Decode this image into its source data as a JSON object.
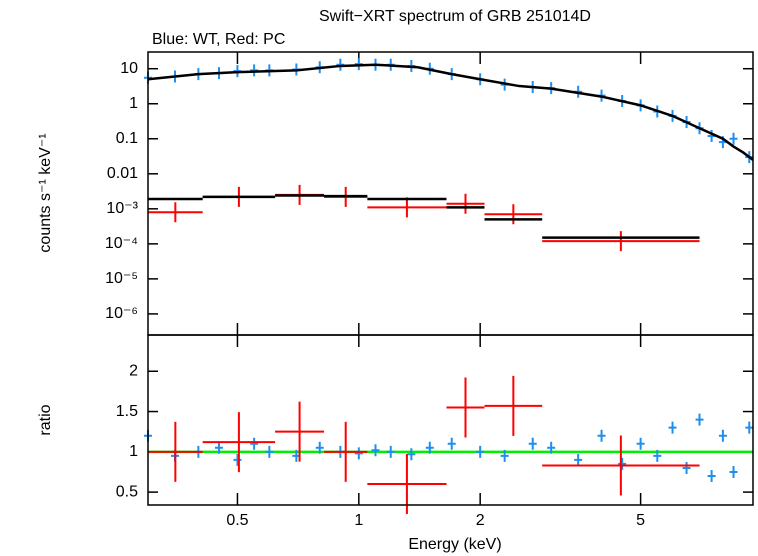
{
  "chart_data": [
    {
      "type": "spectrum",
      "title": "Swift−XRT spectrum of GRB 251014D",
      "subtitle": "Blue: WT, Red: PC",
      "ylabel": "counts s⁻¹ keV⁻¹",
      "xscale": "log",
      "yscale": "log",
      "xlim": [
        0.3,
        9.5
      ],
      "ylim": [
        2.5e-07,
        30
      ],
      "yticks": [
        10,
        1,
        0.1,
        0.01,
        {
          "value": 0.001,
          "label": "10⁻³"
        },
        {
          "value": 0.0001,
          "label": "10⁻⁴"
        },
        {
          "value": 1e-05,
          "label": "10⁻⁵"
        },
        {
          "value": 1e-06,
          "label": "10⁻⁶"
        }
      ],
      "series": [
        {
          "style": "points",
          "color": "#1e8fef",
          "x": [
            0.3,
            0.35,
            0.4,
            0.45,
            0.5,
            0.55,
            0.6,
            0.7,
            0.8,
            0.9,
            1.0,
            1.1,
            1.2,
            1.35,
            1.5,
            1.7,
            2.0,
            2.3,
            2.7,
            3.0,
            3.5,
            4.0,
            4.5,
            5.0,
            5.5,
            6.0,
            6.5,
            7.0,
            7.5,
            8.0,
            8.5,
            9.3
          ],
          "values": [
            5.5,
            6,
            7,
            7.5,
            8.5,
            9,
            9,
            9.5,
            11,
            13,
            13.5,
            13,
            13,
            12,
            10,
            7,
            5,
            3.5,
            3,
            2.8,
            2.2,
            1.7,
            1.2,
            0.9,
            0.6,
            0.45,
            0.3,
            0.2,
            0.12,
            0.08,
            0.1,
            0.03
          ]
        },
        {
          "style": "line",
          "color": "#000000",
          "x": [
            0.3,
            0.4,
            0.5,
            0.7,
            0.9,
            1.1,
            1.4,
            1.7,
            2.0,
            2.5,
            3.0,
            4.0,
            5.0,
            6.0,
            7.0,
            8.0,
            8.5,
            9.0,
            9.5
          ],
          "values": [
            5,
            7,
            8,
            9,
            12,
            13,
            11,
            7,
            5,
            3.2,
            2.7,
            1.6,
            0.9,
            0.45,
            0.2,
            0.1,
            0.06,
            0.04,
            0.025
          ]
        },
        {
          "style": "bins",
          "color": "#ff0000",
          "x_low": [
            0.3,
            0.41,
            0.62,
            0.82,
            1.05,
            1.65,
            2.05,
            2.85
          ],
          "x_high": [
            0.41,
            0.62,
            0.82,
            1.05,
            1.65,
            2.05,
            2.85,
            7.0
          ],
          "values": [
            0.0008,
            0.0022,
            0.0025,
            0.0022,
            0.0011,
            0.0014,
            0.0007,
            0.00012
          ]
        },
        {
          "style": "steps",
          "color": "#000000",
          "x_low": [
            0.3,
            0.41,
            0.62,
            0.82,
            1.05,
            1.65,
            2.05,
            2.85
          ],
          "x_high": [
            0.41,
            0.62,
            0.82,
            1.05,
            1.65,
            2.05,
            2.85,
            7.0
          ],
          "values": [
            0.0019,
            0.0022,
            0.0024,
            0.0023,
            0.0019,
            0.0011,
            0.0005,
            0.00015
          ]
        }
      ]
    },
    {
      "type": "ratio",
      "ylabel": "ratio",
      "xlabel": "Energy (keV)",
      "xscale": "log",
      "xlim": [
        0.3,
        9.5
      ],
      "ylim": [
        0.34,
        2.45
      ],
      "xticks": [
        0.5,
        1,
        2,
        5
      ],
      "yticks": [
        0.5,
        1,
        1.5,
        2
      ],
      "reference": 1,
      "reference_color": "#00ee00",
      "series": [
        {
          "style": "points",
          "color": "#1e8fef",
          "x": [
            0.3,
            0.35,
            0.4,
            0.45,
            0.5,
            0.55,
            0.6,
            0.7,
            0.8,
            0.9,
            1.0,
            1.1,
            1.2,
            1.35,
            1.5,
            1.7,
            2.0,
            2.3,
            2.7,
            3.0,
            3.5,
            4.0,
            4.5,
            5.0,
            5.5,
            6.0,
            6.5,
            7.0,
            7.5,
            8.0,
            8.5,
            9.3
          ],
          "values": [
            1.2,
            0.95,
            1.0,
            1.05,
            0.9,
            1.1,
            1.0,
            0.95,
            1.05,
            1.0,
            0.98,
            1.02,
            1.0,
            0.97,
            1.05,
            1.1,
            1.0,
            0.95,
            1.1,
            1.05,
            0.9,
            1.2,
            0.85,
            1.1,
            0.95,
            1.3,
            0.8,
            1.4,
            0.7,
            1.2,
            0.75,
            1.3
          ]
        },
        {
          "style": "bins",
          "color": "#ff0000",
          "x_low": [
            0.3,
            0.41,
            0.62,
            0.82,
            1.05,
            1.65,
            2.05,
            2.85
          ],
          "x_high": [
            0.41,
            0.62,
            0.82,
            1.05,
            1.65,
            2.05,
            2.85,
            7.0
          ],
          "values": [
            1.0,
            1.12,
            1.25,
            1.0,
            0.6,
            1.55,
            1.57,
            0.83
          ]
        }
      ]
    }
  ]
}
